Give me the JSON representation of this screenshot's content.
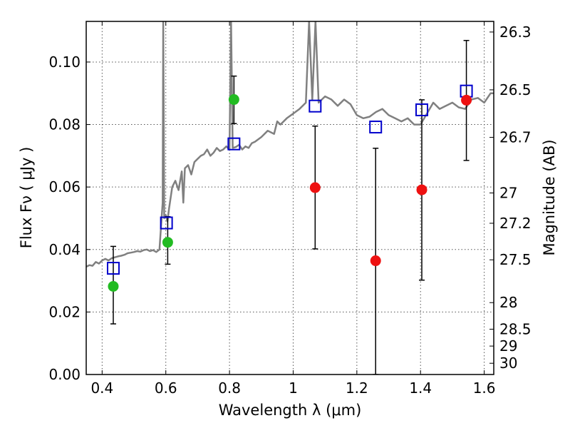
{
  "chart_data": {
    "type": "scatter",
    "title": "",
    "xlabel": "Wavelength  λ (μm)",
    "ylabel": "Flux  Fν  ( μJy )",
    "y2label": "Magnitude (AB)",
    "xlim": [
      0.35,
      1.63
    ],
    "ylim": [
      0.0,
      0.113
    ],
    "grid": true,
    "x_ticks": [
      0.4,
      0.6,
      0.8,
      1.0,
      1.2,
      1.4,
      1.6
    ],
    "x_tick_labels": [
      "0.4",
      "0.6",
      "0.8",
      "1",
      "1.2",
      "1.4",
      "1.6"
    ],
    "y_ticks": [
      0.0,
      0.02,
      0.04,
      0.06,
      0.08,
      0.1
    ],
    "y_tick_labels": [
      "0.00",
      "0.02",
      "0.04",
      "0.06",
      "0.08",
      "0.10"
    ],
    "y2_ticks": [
      {
        "flux": 0.1096,
        "label": "26.3"
      },
      {
        "flux": 0.0911,
        "label": "26.5"
      },
      {
        "flux": 0.0759,
        "label": "26.7"
      },
      {
        "flux": 0.0581,
        "label": "27"
      },
      {
        "flux": 0.0484,
        "label": "27.2"
      },
      {
        "flux": 0.0367,
        "label": "27.5"
      },
      {
        "flux": 0.023,
        "label": "28"
      },
      {
        "flux": 0.0145,
        "label": "28.5"
      },
      {
        "flux": 0.0091,
        "label": "29"
      },
      {
        "flux": 0.0036,
        "label": "30"
      }
    ],
    "colors": {
      "spectrum": "#808080",
      "observed_green": "#22bb22",
      "observed_red": "#ee1111",
      "model": "#0000cc",
      "errorbar": "#000000",
      "grid": "#555555"
    },
    "series": [
      {
        "marker": "square-open",
        "color": "#0000cc",
        "x": [
          0.435,
          0.602,
          0.814,
          1.069,
          1.259,
          1.404,
          1.544
        ],
        "y": [
          0.034,
          0.0485,
          0.0738,
          0.0859,
          0.0792,
          0.0847,
          0.0907
        ]
      },
      {
        "marker": "circle",
        "color": "#22bb22",
        "x": [
          0.435,
          0.606,
          0.814
        ],
        "y": [
          0.0282,
          0.0423,
          0.088
        ],
        "yerr_low": [
          0.0162,
          0.0353,
          0.0803
        ],
        "yerr_high": [
          0.041,
          0.0505,
          0.0955
        ]
      },
      {
        "marker": "circle",
        "color": "#ee1111",
        "x": [
          1.069,
          1.259,
          1.404,
          1.544
        ],
        "y": [
          0.0598,
          0.0364,
          0.0591,
          0.0878
        ],
        "yerr_low": [
          0.0402,
          0.0,
          0.0302,
          0.0685
        ],
        "yerr_high": [
          0.0795,
          0.0724,
          0.0879,
          0.1069
        ]
      },
      {
        "type": "line",
        "color": "#808080",
        "x": [
          0.35,
          0.36,
          0.37,
          0.38,
          0.39,
          0.4,
          0.41,
          0.42,
          0.43,
          0.44,
          0.45,
          0.46,
          0.47,
          0.48,
          0.49,
          0.5,
          0.51,
          0.52,
          0.53,
          0.54,
          0.55,
          0.56,
          0.57,
          0.58,
          0.59,
          0.592,
          0.595,
          0.6,
          0.605,
          0.61,
          0.62,
          0.63,
          0.64,
          0.65,
          0.655,
          0.66,
          0.67,
          0.68,
          0.69,
          0.7,
          0.71,
          0.72,
          0.73,
          0.74,
          0.75,
          0.76,
          0.77,
          0.78,
          0.79,
          0.8,
          0.805,
          0.81,
          0.82,
          0.83,
          0.84,
          0.85,
          0.86,
          0.87,
          0.88,
          0.9,
          0.92,
          0.94,
          0.95,
          0.96,
          0.98,
          1.0,
          1.02,
          1.04,
          1.05,
          1.06,
          1.07,
          1.08,
          1.1,
          1.12,
          1.14,
          1.16,
          1.18,
          1.2,
          1.22,
          1.24,
          1.26,
          1.28,
          1.3,
          1.32,
          1.34,
          1.36,
          1.38,
          1.4,
          1.42,
          1.44,
          1.46,
          1.48,
          1.5,
          1.52,
          1.54,
          1.56,
          1.58,
          1.6,
          1.62,
          1.63
        ],
        "y": [
          0.0345,
          0.035,
          0.0348,
          0.036,
          0.0355,
          0.0365,
          0.037,
          0.0365,
          0.0372,
          0.0375,
          0.0378,
          0.038,
          0.0383,
          0.0388,
          0.039,
          0.0392,
          0.0395,
          0.0393,
          0.0398,
          0.04,
          0.0395,
          0.0398,
          0.0392,
          0.04,
          0.055,
          0.113,
          0.05,
          0.051,
          0.049,
          0.053,
          0.06,
          0.062,
          0.059,
          0.065,
          0.055,
          0.066,
          0.067,
          0.064,
          0.068,
          0.069,
          0.07,
          0.0705,
          0.072,
          0.07,
          0.071,
          0.0725,
          0.0715,
          0.072,
          0.073,
          0.072,
          0.113,
          0.0725,
          0.0728,
          0.0735,
          0.072,
          0.073,
          0.0725,
          0.074,
          0.0745,
          0.076,
          0.078,
          0.077,
          0.081,
          0.08,
          0.082,
          0.0835,
          0.085,
          0.087,
          0.113,
          0.088,
          0.113,
          0.087,
          0.089,
          0.088,
          0.086,
          0.088,
          0.0865,
          0.083,
          0.082,
          0.0825,
          0.084,
          0.085,
          0.083,
          0.082,
          0.081,
          0.082,
          0.08,
          0.08,
          0.0835,
          0.087,
          0.085,
          0.086,
          0.087,
          0.0855,
          0.085,
          0.088,
          0.0885,
          0.087,
          0.09,
          0.09
        ]
      }
    ]
  }
}
